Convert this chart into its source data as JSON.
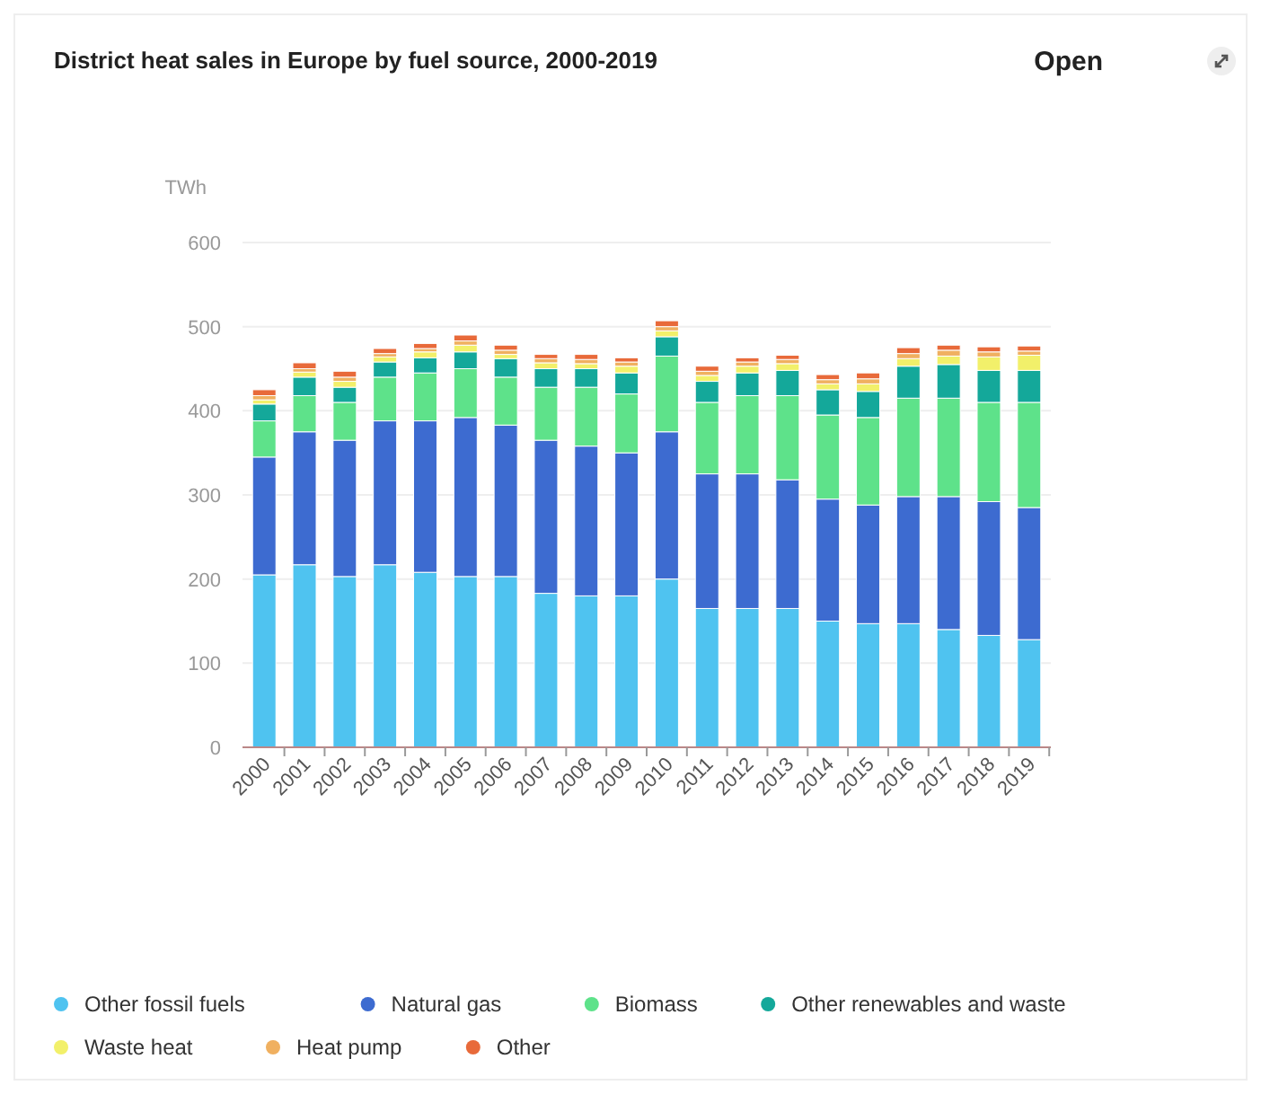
{
  "chart_data": {
    "type": "bar",
    "title": "District heat sales in Europe by fuel source, 2000-2019",
    "ylabel": "TWh",
    "annotations": [
      "Open"
    ],
    "stacked": true,
    "grid": "y",
    "legend": "bottom",
    "categories": [
      "2000",
      "2001",
      "2002",
      "2003",
      "2004",
      "2005",
      "2006",
      "2007",
      "2008",
      "2009",
      "2010",
      "2011",
      "2012",
      "2013",
      "2014",
      "2015",
      "2016",
      "2017",
      "2018",
      "2019"
    ],
    "ylim": [
      0,
      600
    ],
    "yticks": [
      0,
      100,
      200,
      300,
      400,
      500,
      600
    ],
    "series": [
      {
        "name": "Other fossil fuels",
        "color": "#4fc3f0",
        "values": [
          205,
          217,
          203,
          217,
          208,
          203,
          203,
          183,
          180,
          180,
          200,
          165,
          165,
          165,
          150,
          147,
          147,
          140,
          133,
          128
        ]
      },
      {
        "name": "Natural gas",
        "color": "#3d6bd0",
        "values": [
          140,
          158,
          162,
          171,
          180,
          189,
          180,
          182,
          178,
          170,
          175,
          160,
          160,
          153,
          145,
          141,
          151,
          158,
          159,
          157
        ]
      },
      {
        "name": "Biomass",
        "color": "#5ee28a",
        "values": [
          43,
          43,
          45,
          52,
          57,
          58,
          57,
          63,
          70,
          70,
          90,
          85,
          93,
          100,
          100,
          104,
          117,
          117,
          118,
          125
        ]
      },
      {
        "name": "Other renewables and waste",
        "color": "#14a89a",
        "values": [
          20,
          22,
          18,
          18,
          18,
          20,
          22,
          22,
          22,
          25,
          23,
          25,
          27,
          30,
          30,
          31,
          38,
          40,
          38,
          38
        ]
      },
      {
        "name": "Waste heat",
        "color": "#f2f06a",
        "values": [
          5,
          6,
          7,
          6,
          7,
          8,
          5,
          7,
          6,
          8,
          7,
          7,
          8,
          8,
          7,
          9,
          9,
          10,
          16,
          18
        ]
      },
      {
        "name": "Heat pump",
        "color": "#f0b060",
        "values": [
          5,
          4,
          5,
          4,
          4,
          5,
          5,
          5,
          5,
          5,
          5,
          5,
          5,
          5,
          5,
          6,
          6,
          7,
          6,
          5
        ]
      },
      {
        "name": "Other",
        "color": "#e86a3a",
        "values": [
          7,
          7,
          7,
          6,
          6,
          7,
          6,
          5,
          6,
          5,
          7,
          6,
          5,
          5,
          6,
          7,
          7,
          6,
          6,
          6
        ]
      }
    ]
  }
}
